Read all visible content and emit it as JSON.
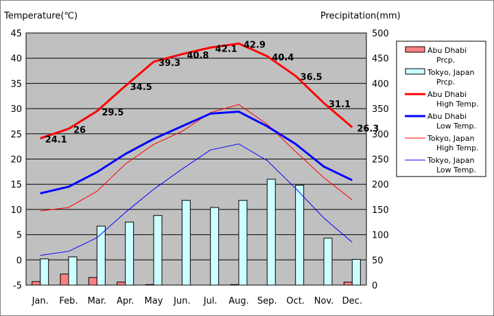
{
  "chart_data": {
    "type": "bar",
    "y_left_label": "Temperature(℃)",
    "y_right_label": "Precipitation(mm)",
    "y_left_ticks": [
      "45",
      "40",
      "35",
      "30",
      "25",
      "20",
      "15",
      "10",
      "5",
      "0",
      "-5"
    ],
    "y_right_ticks": [
      "500",
      "450",
      "400",
      "350",
      "300",
      "250",
      "200",
      "150",
      "100",
      "50",
      "0"
    ],
    "ylim_left": [
      -5,
      45
    ],
    "ylim_right": [
      0,
      500
    ],
    "grid": true,
    "legend_position": "right",
    "categories": [
      "Jan.",
      "Feb.",
      "Mar.",
      "Apr.",
      "May",
      "Jun.",
      "Jul.",
      "Aug.",
      "Sep.",
      "Oct.",
      "Nov.",
      "Dec."
    ],
    "series": [
      {
        "name": "Abu Dhabi Prcp.",
        "type": "bar",
        "axis": "right",
        "color": "#ff8080",
        "values": [
          7,
          22,
          15,
          6,
          1,
          0,
          0,
          1,
          0,
          0,
          0,
          6
        ]
      },
      {
        "name": "Tokyo, Japan Prcp.",
        "type": "bar",
        "axis": "right",
        "color": "#ccffff",
        "values": [
          52,
          56,
          117,
          125,
          138,
          168,
          154,
          168,
          210,
          198,
          93,
          51
        ]
      },
      {
        "name": "Abu Dhabi High Temp.",
        "type": "line",
        "axis": "left",
        "color": "#ff0000",
        "width": 3,
        "values": [
          24.1,
          26,
          29.5,
          34.5,
          39.3,
          40.8,
          42.1,
          42.9,
          40.4,
          36.5,
          31.1,
          26.3
        ],
        "labels": [
          "24.1",
          "26",
          "29.5",
          "34.5",
          "39.3",
          "40.8",
          "42.1",
          "42.9",
          "40.4",
          "36.5",
          "31.1",
          "26.3"
        ]
      },
      {
        "name": "Abu Dhabi Low Temp.",
        "type": "line",
        "axis": "left",
        "color": "#0000ff",
        "width": 3,
        "values": [
          13.2,
          14.5,
          17.4,
          21.0,
          24.0,
          26.5,
          29.0,
          29.4,
          26.5,
          23.0,
          18.5,
          15.8
        ]
      },
      {
        "name": "Tokyo, Japan High Temp.",
        "type": "line",
        "axis": "left",
        "color": "#ff0000",
        "width": 1,
        "values": [
          9.7,
          10.4,
          13.6,
          19.0,
          22.9,
          25.5,
          29.2,
          30.8,
          26.9,
          21.5,
          16.3,
          11.9
        ]
      },
      {
        "name": "Tokyo, Japan Low Temp.",
        "type": "line",
        "axis": "left",
        "color": "#0000ff",
        "width": 1,
        "values": [
          0.9,
          1.7,
          4.4,
          9.4,
          14.0,
          18.0,
          21.8,
          23.0,
          19.7,
          14.2,
          8.3,
          3.5
        ]
      }
    ],
    "legend": [
      {
        "line1": "Abu Dhabi",
        "line2": "Prcp.",
        "kind": "box",
        "color": "#ff8080"
      },
      {
        "line1": "Tokyo, Japan",
        "line2": "Prcp.",
        "kind": "box",
        "color": "#ccffff"
      },
      {
        "line1": "Abu Dhabi",
        "line2": "High Temp.",
        "kind": "thick",
        "color": "#ff0000"
      },
      {
        "line1": "Abu Dhabi",
        "line2": "Low Temp.",
        "kind": "thick",
        "color": "#0000ff"
      },
      {
        "line1": "Tokyo, Japan",
        "line2": "High Temp.",
        "kind": "thin",
        "color": "#ff0000"
      },
      {
        "line1": "Tokyo, Japan",
        "line2": "Low Temp.",
        "kind": "thin",
        "color": "#0000ff"
      }
    ]
  }
}
